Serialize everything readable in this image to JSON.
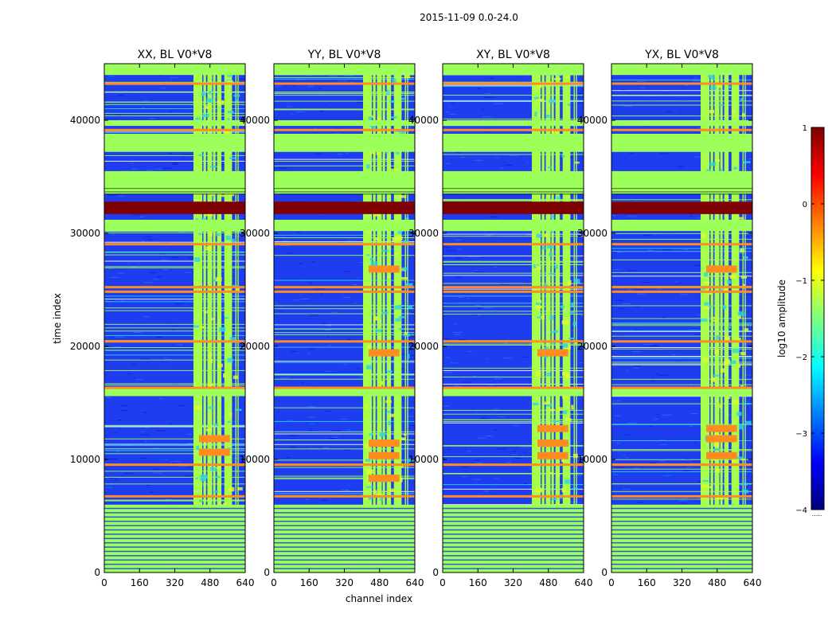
{
  "figure": {
    "suptitle": "2015-11-09 0.0-24.0",
    "xlabel": "channel index",
    "ylabel": "time index"
  },
  "colors": {
    "background": "#1e3cf0",
    "flag": "#9cff5a",
    "orange": "#ff8c1e",
    "darkred": "#7e0000",
    "lightgreen": "#a8ff4a",
    "yellow": "#e6ff28",
    "cyan": "#2bd6e6"
  },
  "chart_data": {
    "type": "heatmap",
    "panels": [
      {
        "title": "XX, BL V0*V8",
        "hot_rows": [
          10600,
          11800
        ]
      },
      {
        "title": "YY, BL V0*V8",
        "hot_rows": [
          8300,
          10300,
          11400,
          19400,
          26800
        ]
      },
      {
        "title": "XY, BL V0*V8",
        "hot_rows": [
          10300,
          11400,
          12700,
          19400
        ]
      },
      {
        "title": "YX, BL V0*V8",
        "hot_rows": [
          10300,
          11800,
          12700,
          26800
        ]
      }
    ],
    "x_range": [
      0,
      640
    ],
    "y_range": [
      0,
      45000
    ],
    "x_ticks": [
      0,
      160,
      320,
      480,
      640
    ],
    "y_ticks": [
      0,
      10000,
      20000,
      30000,
      40000
    ],
    "y_tick_labels": [
      "0",
      "10000",
      "20000",
      "30000",
      "40000"
    ],
    "flagged_channel_bands": [
      [
        405,
        445
      ],
      [
        450,
        462
      ],
      [
        468,
        490
      ],
      [
        494,
        505
      ],
      [
        512,
        532
      ],
      [
        545,
        580
      ],
      [
        595,
        600
      ],
      [
        605,
        610
      ]
    ],
    "flagged_time_bands": [
      [
        0,
        6000
      ],
      [
        15600,
        16400
      ],
      [
        30200,
        31200
      ],
      [
        33500,
        35500
      ],
      [
        37200,
        38800
      ],
      [
        39500,
        40000
      ],
      [
        44000,
        45000
      ]
    ],
    "hot_time_bands": [
      [
        31700,
        32800
      ]
    ],
    "orange_time_lines": [
      6700,
      9500,
      16300,
      20400,
      24800,
      25200,
      29000,
      39100,
      43200
    ],
    "colorbar": {
      "label": "log10 amplitude",
      "range": [
        -4,
        1
      ],
      "ticks": [
        1,
        0,
        -1,
        -2,
        -3,
        -4
      ],
      "tick_labels": [
        "1",
        "0",
        "−1",
        "−2",
        "−3",
        "−4"
      ],
      "stops": [
        "#00007f",
        "#0000ff",
        "#007fff",
        "#00ffff",
        "#7fff7f",
        "#ffff00",
        "#ff7f00",
        "#ff0000",
        "#7f0000"
      ],
      "bottom_note": "....."
    }
  }
}
